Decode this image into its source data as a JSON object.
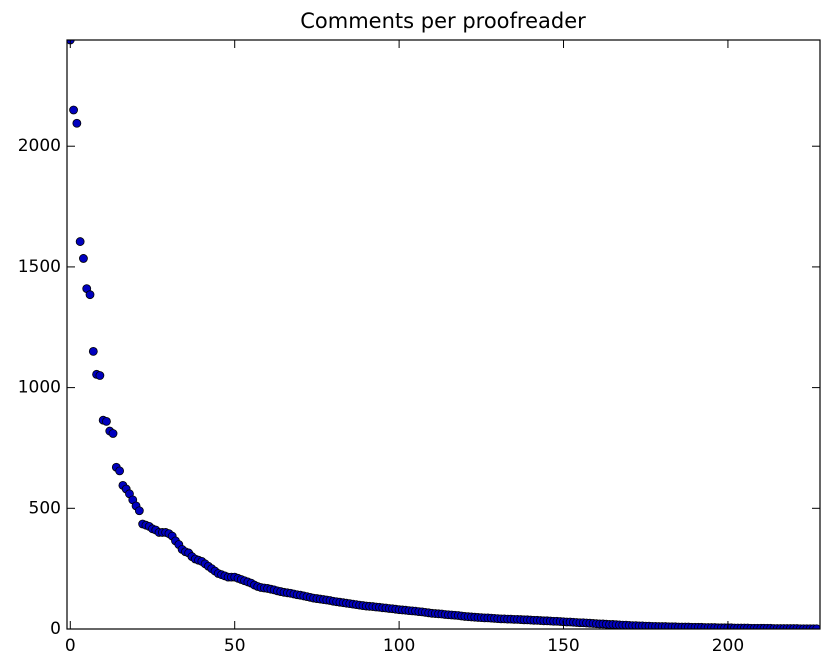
{
  "chart_data": {
    "type": "scatter",
    "title": "Comments per proofreader",
    "x": [
      0,
      1,
      2,
      3,
      4,
      5,
      6,
      7,
      8,
      9,
      10,
      11,
      12,
      13,
      14,
      15,
      16,
      17,
      18,
      19,
      20,
      21,
      22,
      23,
      24,
      25,
      26,
      27,
      28,
      29,
      30,
      31,
      32,
      33,
      34,
      35,
      36,
      37,
      38,
      39,
      40,
      41,
      42,
      43,
      44,
      45,
      46,
      47,
      48,
      49,
      50,
      51,
      52,
      53,
      54,
      55,
      56,
      57,
      58,
      59,
      60,
      61,
      62,
      63,
      64,
      65,
      66,
      67,
      68,
      69,
      70,
      71,
      72,
      73,
      74,
      75,
      76,
      77,
      78,
      79,
      80,
      81,
      82,
      83,
      84,
      85,
      86,
      87,
      88,
      89,
      90,
      91,
      92,
      93,
      94,
      95,
      96,
      97,
      98,
      99,
      100,
      101,
      102,
      103,
      104,
      105,
      106,
      107,
      108,
      109,
      110,
      111,
      112,
      113,
      114,
      115,
      116,
      117,
      118,
      119,
      120,
      121,
      122,
      123,
      124,
      125,
      126,
      127,
      128,
      129,
      130,
      131,
      132,
      133,
      134,
      135,
      136,
      137,
      138,
      139,
      140,
      141,
      142,
      143,
      144,
      145,
      146,
      147,
      148,
      149,
      150,
      151,
      152,
      153,
      154,
      155,
      156,
      157,
      158,
      159,
      160,
      161,
      162,
      163,
      164,
      165,
      166,
      167,
      168,
      169,
      170,
      171,
      172,
      173,
      174,
      175,
      176,
      177,
      178,
      179,
      180,
      181,
      182,
      183,
      184,
      185,
      186,
      187,
      188,
      189,
      190,
      191,
      192,
      193,
      194,
      195,
      196,
      197,
      198,
      199,
      200,
      201,
      202,
      203,
      204,
      205,
      206,
      207,
      208,
      209,
      210,
      211,
      212,
      213,
      214,
      215,
      216,
      217,
      218,
      219,
      220,
      221,
      222,
      223,
      224,
      225,
      226,
      227
    ],
    "values": [
      2440,
      2150,
      2095,
      1605,
      1535,
      1410,
      1385,
      1150,
      1055,
      1050,
      865,
      860,
      820,
      810,
      670,
      655,
      595,
      580,
      560,
      535,
      510,
      490,
      435,
      430,
      425,
      415,
      410,
      400,
      400,
      400,
      395,
      385,
      365,
      350,
      330,
      320,
      315,
      300,
      290,
      285,
      280,
      270,
      260,
      250,
      240,
      230,
      225,
      220,
      215,
      215,
      215,
      210,
      205,
      200,
      195,
      190,
      182,
      176,
      172,
      170,
      168,
      165,
      162,
      158,
      155,
      152,
      150,
      148,
      145,
      142,
      140,
      137,
      134,
      131,
      128,
      126,
      124,
      122,
      120,
      118,
      115,
      113,
      111,
      109,
      107,
      105,
      103,
      101,
      99,
      97,
      95,
      94,
      93,
      91,
      90,
      88,
      87,
      85,
      84,
      82,
      80,
      79,
      78,
      76,
      75,
      74,
      72,
      71,
      69,
      67,
      65,
      64,
      63,
      62,
      60,
      59,
      58,
      57,
      56,
      54,
      52,
      51,
      50,
      49,
      48,
      47,
      46,
      46,
      45,
      44,
      43,
      42,
      42,
      41,
      41,
      40,
      40,
      39,
      38,
      38,
      37,
      36,
      36,
      35,
      34,
      34,
      33,
      32,
      32,
      31,
      30,
      29,
      29,
      28,
      27,
      26,
      26,
      25,
      24,
      23,
      22,
      21,
      21,
      20,
      19,
      19,
      18,
      17,
      16,
      16,
      15,
      14,
      14,
      13,
      13,
      12,
      12,
      11,
      11,
      10,
      10,
      10,
      9,
      9,
      9,
      8,
      8,
      8,
      8,
      7,
      7,
      7,
      7,
      6,
      6,
      6,
      6,
      5,
      5,
      5,
      5,
      5,
      4,
      4,
      4,
      4,
      4,
      3,
      3,
      3,
      3,
      3,
      3,
      3,
      2,
      2,
      2,
      2,
      2,
      2,
      2,
      2,
      1,
      1,
      1,
      1,
      1,
      1
    ],
    "color": "#0000bf",
    "xlim": [
      -1,
      228
    ],
    "ylim": [
      0,
      2440
    ],
    "xticks": [
      0,
      50,
      100,
      150,
      200
    ],
    "yticks": [
      0,
      500,
      1000,
      1500,
      2000
    ]
  }
}
